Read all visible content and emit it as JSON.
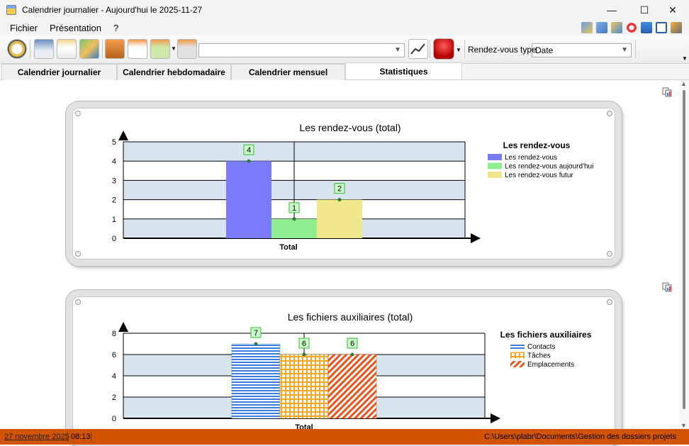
{
  "window": {
    "title": "Calendrier journalier - Aujourd'hui le 2025-11-27"
  },
  "window_controls": {
    "minimize": "—",
    "maximize": "☐",
    "close": "✕"
  },
  "menu": {
    "items": [
      "Fichier",
      "Présentation",
      "?"
    ]
  },
  "toolbar": {
    "search_value": "",
    "rdv_type_label": "Rendez-vous type :",
    "rdv_type_value": "Date"
  },
  "tabs": [
    {
      "label": "Calendrier journalier",
      "active": false
    },
    {
      "label": "Calendrier hebdomadaire",
      "active": false
    },
    {
      "label": "Calendrier mensuel",
      "active": false
    },
    {
      "label": "Statistiques",
      "active": true
    }
  ],
  "chart_data": [
    {
      "type": "bar",
      "title": "Les rendez-vous (total)",
      "categories": [
        "Total"
      ],
      "xlabel": "Total",
      "ylim": [
        0,
        5
      ],
      "yticks": [
        0,
        1,
        2,
        3,
        4,
        5
      ],
      "grid": true,
      "legend_title": "Les rendez-vous",
      "legend_position": "right",
      "series": [
        {
          "name": "Les rendez-vous",
          "values": [
            4
          ],
          "label": "4",
          "color": "#7b7bff"
        },
        {
          "name": "Les rendez-vous aujourd'hui",
          "values": [
            1
          ],
          "label": "1",
          "color": "#90ee90"
        },
        {
          "name": "Les rendez-vous futur",
          "values": [
            2
          ],
          "label": "2",
          "color": "#f0e68c"
        }
      ]
    },
    {
      "type": "bar",
      "title": "Les fichiers auxiliaires (total)",
      "categories": [
        "Total"
      ],
      "xlabel": "Total",
      "ylim": [
        0,
        8
      ],
      "yticks": [
        0,
        2,
        4,
        6,
        8
      ],
      "grid": true,
      "legend_title": "Les fichiers auxiliaires",
      "legend_position": "right",
      "series": [
        {
          "name": "Contacts",
          "values": [
            7
          ],
          "label": "7",
          "color": "#3a7fe0",
          "pattern": "horizontal-lines"
        },
        {
          "name": "Tâches",
          "values": [
            6
          ],
          "label": "6",
          "color": "#f5a623",
          "pattern": "grid"
        },
        {
          "name": "Emplacements",
          "values": [
            6
          ],
          "label": "6",
          "color": "#e8541d",
          "pattern": "diagonal"
        }
      ]
    }
  ],
  "status": {
    "date": "27 novembre 2025",
    "time": "08:13",
    "path": "C:\\Users\\plabr\\Documents\\Gestion des dossiers projets"
  },
  "colors": {
    "status_bar": "#d35400",
    "chart_band": "#d9e4f1",
    "value_box": "#ccffcc"
  }
}
